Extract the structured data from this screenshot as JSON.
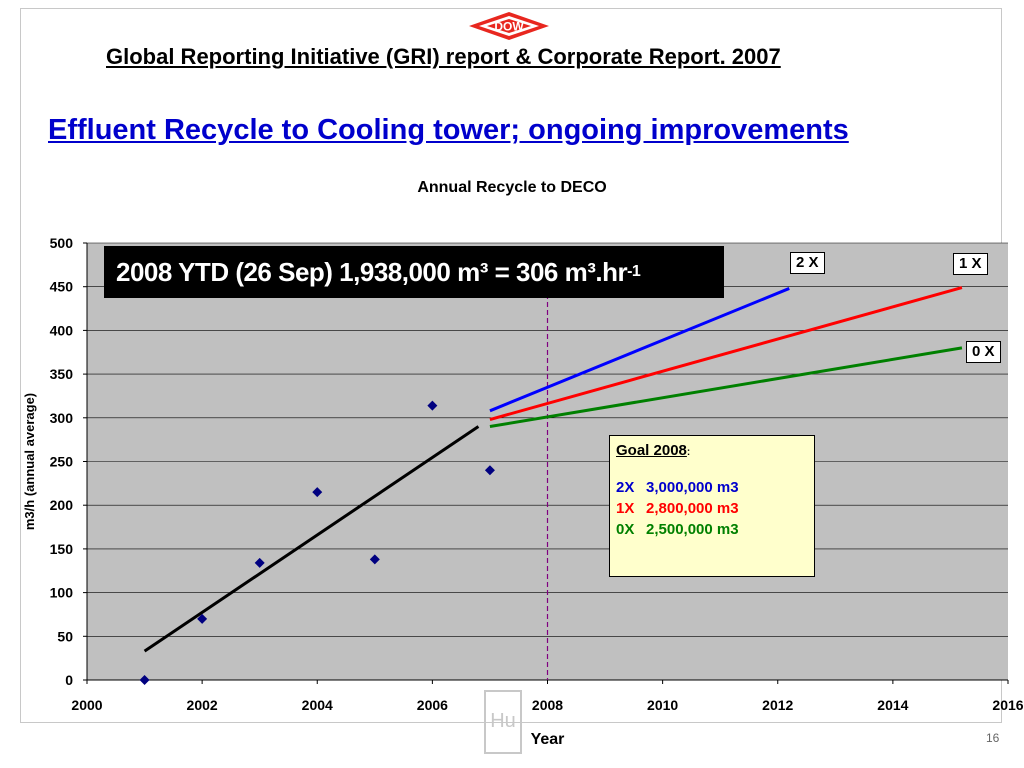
{
  "logo": {
    "text": "DOW",
    "color": "#e8271f"
  },
  "header": "Global Reporting Initiative (GRI) report & Corporate Report. 2007",
  "subtitle": "Effluent Recycle to Cooling tower; ongoing improvements",
  "chart_data": {
    "type": "scatter",
    "title": "Annual Recycle to DECO",
    "xlabel": "Year",
    "ylabel": "m3/h (annual average)",
    "xlim": [
      2000,
      2016
    ],
    "ylim": [
      0,
      500
    ],
    "xticks": [
      2000,
      2002,
      2004,
      2006,
      2008,
      2010,
      2012,
      2014,
      2016
    ],
    "yticks": [
      0,
      50,
      100,
      150,
      200,
      250,
      300,
      350,
      400,
      450,
      500
    ],
    "grid": true,
    "plot_background": "#c0c0c0",
    "points": {
      "color": "#000080",
      "x": [
        2001,
        2002,
        2003,
        2004,
        2005,
        2006,
        2007
      ],
      "y": [
        0,
        70,
        134,
        215,
        138,
        314,
        240
      ]
    },
    "trend": {
      "color": "#000000",
      "x": [
        2001,
        2006.8
      ],
      "y": [
        33,
        290
      ]
    },
    "projections": [
      {
        "name": "2 X",
        "color": "#0000ff",
        "x": [
          2007,
          2012.2
        ],
        "y": [
          308,
          448
        ]
      },
      {
        "name": "1 X",
        "color": "#ff0000",
        "x": [
          2007,
          2015.2
        ],
        "y": [
          298,
          449
        ]
      },
      {
        "name": "0 X",
        "color": "#008000",
        "x": [
          2007,
          2015.2
        ],
        "y": [
          290,
          380
        ]
      }
    ],
    "marker_line": {
      "x": 2008,
      "color": "#800080"
    },
    "annotation": {
      "main": "2008 YTD (26 Sep) 1,938,000 m³ = 306 m³.hr",
      "superscript": "-1"
    },
    "goal": {
      "title": "Goal 2008",
      "colon": ":",
      "rows": [
        {
          "key": "2X",
          "value": "3,000,000 m3",
          "color": "#0000cc"
        },
        {
          "key": "1X",
          "value": "2,800,000 m3",
          "color": "#ff0000"
        },
        {
          "key": "0X",
          "value": "2,500,000 m3",
          "color": "#008000"
        }
      ]
    }
  },
  "watermark": "Hu",
  "page_number": "16"
}
